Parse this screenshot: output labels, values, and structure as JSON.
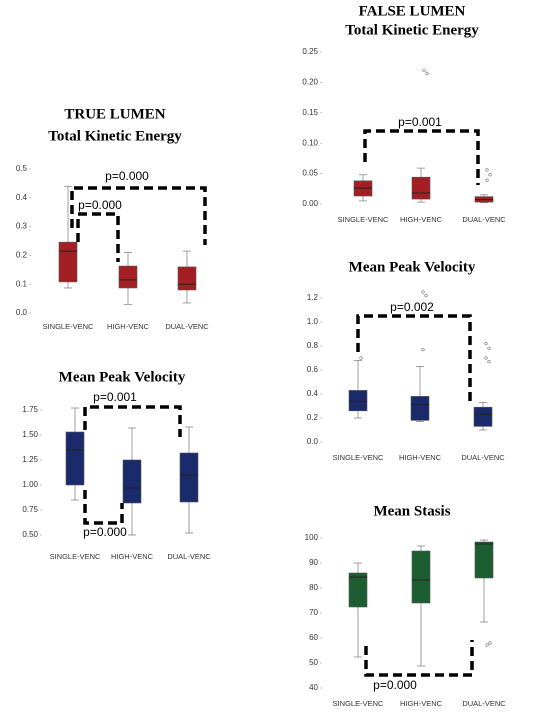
{
  "chart_data": [
    {
      "type": "box",
      "title": "TRUE LUMEN",
      "subtitle": "Total Kinetic Energy",
      "color": "#a31f23",
      "categories": [
        "SINGLE-VENC",
        "HIGH-VENC",
        "DUAL-VENC"
      ],
      "boxes": [
        {
          "min": 0.087,
          "q1": 0.108,
          "median": 0.215,
          "q3": 0.246,
          "max": 0.44,
          "outliers": []
        },
        {
          "min": 0.03,
          "q1": 0.087,
          "median": 0.115,
          "q3": 0.163,
          "max": 0.21,
          "outliers": []
        },
        {
          "min": 0.035,
          "q1": 0.08,
          "median": 0.1,
          "q3": 0.16,
          "max": 0.215,
          "outliers": []
        }
      ],
      "ylim": [
        -0.02,
        0.52
      ],
      "yticks": [
        {
          "value": 0,
          "label": "0.0"
        },
        0.1,
        0.2,
        0.3,
        0.4,
        0.5
      ],
      "annotations": [
        "p=0.000",
        "p=0.000"
      ]
    },
    {
      "type": "box",
      "title": "Mean Peak Velocity",
      "color": "#1b2a6b",
      "categories": [
        "SINGLE-VENC",
        "HIGH-VENC",
        "DUAL-VENC"
      ],
      "boxes": [
        {
          "min": 0.85,
          "q1": 1.0,
          "median": 1.35,
          "q3": 1.53,
          "max": 1.77,
          "outliers": []
        },
        {
          "min": 0.5,
          "q1": 0.82,
          "median": 0.97,
          "q3": 1.25,
          "max": 1.57,
          "outliers": []
        },
        {
          "min": 0.52,
          "q1": 0.83,
          "median": 1.1,
          "q3": 1.32,
          "max": 1.58,
          "outliers": []
        }
      ],
      "ylim": [
        0.4,
        1.85
      ],
      "yticks": [
        {
          "value": 0.5,
          "label": "0.50"
        },
        {
          "value": 0.75,
          "label": "0.75"
        },
        {
          "value": 1,
          "label": "1.00"
        },
        {
          "value": 1.25,
          "label": "1.25"
        },
        {
          "value": 1.5,
          "label": "1.50"
        },
        {
          "value": 1.75,
          "label": "1.75"
        }
      ],
      "annotations": [
        "p=0.001",
        "p=0.000"
      ]
    },
    {
      "type": "box",
      "title": "FALSE LUMEN",
      "subtitle": "Total Kinetic Energy",
      "color": "#a31f23",
      "categories": [
        "SINGLE-VENC",
        "HIGH-VENC",
        "DUAL-VENC"
      ],
      "boxes": [
        {
          "min": 0.005,
          "q1": 0.013,
          "median": 0.026,
          "q3": 0.038,
          "max": 0.048,
          "outliers": []
        },
        {
          "min": 0.003,
          "q1": 0.008,
          "median": 0.018,
          "q3": 0.044,
          "max": 0.059,
          "outliers": [
            0.22,
            0.215
          ]
        },
        {
          "min": 0.002,
          "q1": 0.003,
          "median": 0.007,
          "q3": 0.012,
          "max": 0.015,
          "outliers": [
            0.056,
            0.048,
            0.039
          ]
        }
      ],
      "ylim": [
        -0.01,
        0.26
      ],
      "yticks": [
        {
          "value": 0,
          "label": "0.00"
        },
        {
          "value": 0.05,
          "label": "0.05"
        },
        {
          "value": 0.1,
          "label": "0.10"
        },
        {
          "value": 0.15,
          "label": "0.15"
        },
        {
          "value": 0.2,
          "label": "0.20"
        },
        {
          "value": 0.25,
          "label": "0.25"
        }
      ],
      "annotations": [
        "p=0.001"
      ]
    },
    {
      "type": "box",
      "title": "Mean Peak Velocity",
      "color": "#1b2a6b",
      "categories": [
        "SINGLE-VENC",
        "HIGH-VENC",
        "DUAL-VENC"
      ],
      "boxes": [
        {
          "min": 0.2,
          "q1": 0.26,
          "median": 0.34,
          "q3": 0.43,
          "max": 0.68,
          "outliers": [
            0.7
          ]
        },
        {
          "min": 0.17,
          "q1": 0.18,
          "median": 0.31,
          "q3": 0.38,
          "max": 0.63,
          "outliers": [
            1.25,
            1.22,
            0.77
          ]
        },
        {
          "min": 0.1,
          "q1": 0.13,
          "median": 0.23,
          "q3": 0.29,
          "max": 0.33,
          "outliers": [
            0.82,
            0.78,
            0.7,
            0.67
          ]
        }
      ],
      "ylim": [
        -0.05,
        1.3
      ],
      "yticks": [
        {
          "value": 0,
          "label": "0.0"
        },
        0.2,
        0.4,
        0.6,
        0.8,
        {
          "value": 1,
          "label": "1.0"
        },
        1.2
      ],
      "annotations": [
        "p=0.002"
      ]
    },
    {
      "type": "box",
      "title": "Mean Stasis",
      "color": "#1c5e32",
      "categories": [
        "SINGLE-VENC",
        "HIGH-VENC",
        "DUAL-VENC"
      ],
      "boxes": [
        {
          "min": 52.4,
          "q1": 72.4,
          "median": 84.4,
          "q3": 86,
          "max": 90,
          "outliers": []
        },
        {
          "min": 48.8,
          "q1": 74,
          "median": 83.2,
          "q3": 94.8,
          "max": 96.8,
          "outliers": []
        },
        {
          "min": 66.4,
          "q1": 84,
          "median": 97.6,
          "q3": 98.4,
          "max": 99.2,
          "outliers": [
            57.2,
            58
          ]
        }
      ],
      "ylim": [
        37,
        102
      ],
      "yticks": [
        40,
        50,
        60,
        70,
        80,
        90,
        100
      ],
      "annotations": [
        "p=0.000"
      ]
    }
  ]
}
